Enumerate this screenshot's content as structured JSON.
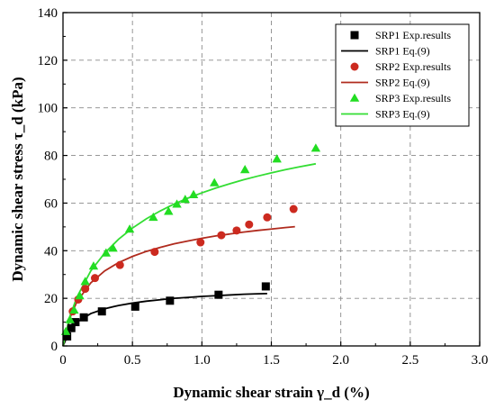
{
  "chart_data": {
    "type": "scatter",
    "xlabel": "Dynamic shear strain γ_d (%)",
    "ylabel": "Dynamic shear stress τ_d (kPa)",
    "xlim": [
      0,
      3.0
    ],
    "ylim": [
      0,
      140
    ],
    "xticks": [
      "0",
      "0.5",
      "1.0",
      "1.5",
      "2.0",
      "2.5",
      "3.0"
    ],
    "yticks": [
      "0",
      "20",
      "40",
      "60",
      "80",
      "100",
      "120",
      "140"
    ],
    "grid": true,
    "legend_position": "top-right",
    "series": [
      {
        "name": "SRP1 Exp.results",
        "kind": "points",
        "marker": "square",
        "color": "#000000",
        "x": [
          0.03,
          0.06,
          0.09,
          0.15,
          0.28,
          0.52,
          0.77,
          1.12,
          1.46
        ],
        "y": [
          4.0,
          7.5,
          10.0,
          12.0,
          14.5,
          16.5,
          19.0,
          21.5,
          25.0
        ]
      },
      {
        "name": "SRP1 Eq.(9)",
        "kind": "line",
        "color": "#000000",
        "x": [
          0.0,
          0.05,
          0.1,
          0.2,
          0.3,
          0.4,
          0.5,
          0.6,
          0.7,
          0.8,
          0.9,
          1.0,
          1.1,
          1.2,
          1.3,
          1.4,
          1.47
        ],
        "y": [
          0.0,
          6.5,
          10.0,
          13.6,
          15.6,
          17.0,
          18.0,
          18.8,
          19.4,
          20.0,
          20.4,
          20.8,
          21.1,
          21.4,
          21.7,
          21.9,
          22.0
        ]
      },
      {
        "name": "SRP2 Exp.results",
        "kind": "points",
        "marker": "circle",
        "color": "#cc2a1f",
        "x": [
          0.07,
          0.11,
          0.16,
          0.23,
          0.41,
          0.66,
          0.99,
          1.14,
          1.25,
          1.34,
          1.47,
          1.66
        ],
        "y": [
          14.5,
          19.5,
          24.0,
          28.5,
          34.0,
          39.5,
          43.5,
          46.5,
          48.5,
          51.0,
          54.0,
          57.5
        ]
      },
      {
        "name": "SRP2 Eq.(9)",
        "kind": "line",
        "color": "#b02b1e",
        "x": [
          0.0,
          0.05,
          0.1,
          0.2,
          0.3,
          0.4,
          0.5,
          0.6,
          0.7,
          0.8,
          0.9,
          1.0,
          1.1,
          1.2,
          1.3,
          1.4,
          1.5,
          1.6,
          1.67
        ],
        "y": [
          0.0,
          11.8,
          18.6,
          26.5,
          31.5,
          35.0,
          37.6,
          39.7,
          41.4,
          42.9,
          44.1,
          45.2,
          46.2,
          47.0,
          47.8,
          48.5,
          49.1,
          49.7,
          50.1
        ]
      },
      {
        "name": "SRP3 Exp.results",
        "kind": "points",
        "marker": "triangle",
        "color": "#22dd22",
        "x": [
          0.02,
          0.05,
          0.08,
          0.12,
          0.16,
          0.22,
          0.31,
          0.36,
          0.48,
          0.65,
          0.76,
          0.82,
          0.88,
          0.94,
          1.09,
          1.31,
          1.54,
          1.82
        ],
        "y": [
          6.0,
          11.0,
          15.0,
          21.0,
          27.0,
          33.5,
          39.0,
          41.0,
          49.0,
          54.0,
          56.5,
          59.5,
          61.5,
          63.5,
          68.5,
          74.0,
          78.5,
          83.0
        ]
      },
      {
        "name": "SRP3 Eq.(9)",
        "kind": "line",
        "color": "#33dd33",
        "x": [
          0.0,
          0.05,
          0.1,
          0.2,
          0.3,
          0.4,
          0.5,
          0.6,
          0.7,
          0.8,
          0.9,
          1.0,
          1.1,
          1.2,
          1.3,
          1.4,
          1.5,
          1.6,
          1.7,
          1.82
        ],
        "y": [
          0.0,
          12.5,
          20.5,
          31.5,
          39.0,
          44.8,
          49.5,
          53.4,
          56.7,
          59.6,
          62.1,
          64.3,
          66.3,
          68.1,
          69.8,
          71.3,
          72.7,
          74.0,
          75.2,
          76.5
        ]
      }
    ]
  }
}
